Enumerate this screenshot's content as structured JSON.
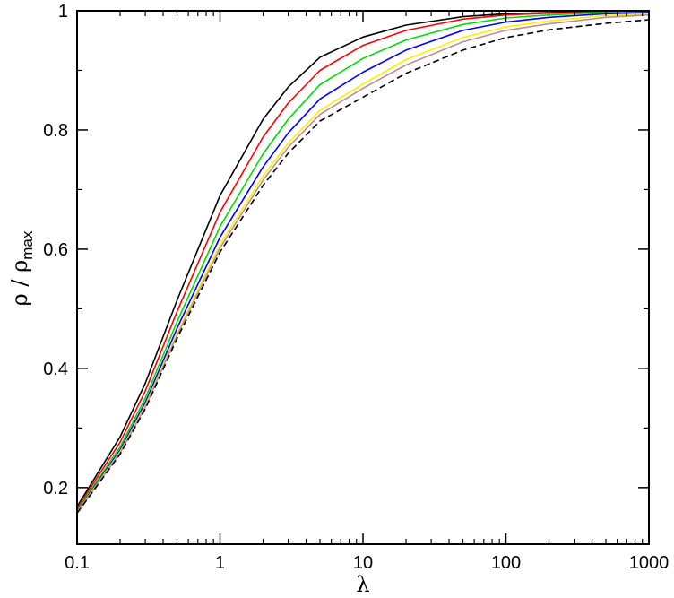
{
  "chart_data": {
    "type": "line",
    "title": "",
    "xlabel": "λ",
    "ylabel": "ρ / ρ",
    "ylabel_subscript": "max",
    "x_scale": "log",
    "xlim": [
      0.1,
      1000
    ],
    "ylim": [
      0.105,
      1.0
    ],
    "x_ticks": [
      0.1,
      1,
      10,
      100,
      1000
    ],
    "x_tick_labels": [
      "0.1",
      "1",
      "10",
      "100",
      "1000"
    ],
    "y_ticks": [
      0.2,
      0.4,
      0.6,
      0.8,
      1.0
    ],
    "y_tick_labels": [
      "0.2",
      "0.4",
      "0.6",
      "0.8",
      "1"
    ],
    "grid": false,
    "legend": "none",
    "x": [
      0.1,
      0.2,
      0.3,
      0.5,
      1,
      2,
      3,
      5,
      10,
      20,
      50,
      100,
      200,
      500,
      1000
    ],
    "series": [
      {
        "color": "#000000",
        "dash": "solid",
        "values": [
          0.168,
          0.285,
          0.375,
          0.514,
          0.69,
          0.818,
          0.872,
          0.922,
          0.956,
          0.976,
          0.99,
          0.995,
          0.997,
          0.999,
          1.0
        ]
      },
      {
        "color": "#ff0000",
        "dash": "solid",
        "values": [
          0.165,
          0.276,
          0.362,
          0.495,
          0.662,
          0.788,
          0.845,
          0.9,
          0.942,
          0.967,
          0.986,
          0.993,
          0.996,
          0.998,
          0.999
        ]
      },
      {
        "color": "#00dd00",
        "dash": "solid",
        "values": [
          0.162,
          0.268,
          0.35,
          0.478,
          0.638,
          0.76,
          0.818,
          0.876,
          0.92,
          0.951,
          0.977,
          0.988,
          0.993,
          0.997,
          0.998
        ]
      },
      {
        "color": "#0000ff",
        "dash": "solid",
        "values": [
          0.16,
          0.263,
          0.343,
          0.467,
          0.62,
          0.738,
          0.795,
          0.852,
          0.897,
          0.934,
          0.967,
          0.981,
          0.989,
          0.995,
          0.997
        ]
      },
      {
        "color": "#ffee00",
        "dash": "solid",
        "values": [
          0.159,
          0.26,
          0.338,
          0.459,
          0.608,
          0.723,
          0.778,
          0.833,
          0.877,
          0.918,
          0.955,
          0.973,
          0.983,
          0.992,
          0.995
        ]
      },
      {
        "color": "#bc8f8f",
        "dash": "solid",
        "values": [
          0.158,
          0.258,
          0.335,
          0.455,
          0.602,
          0.716,
          0.771,
          0.826,
          0.87,
          0.909,
          0.948,
          0.967,
          0.978,
          0.989,
          0.993
        ]
      },
      {
        "color": "#000000",
        "dash": "dashed",
        "values": [
          0.157,
          0.256,
          0.332,
          0.45,
          0.595,
          0.707,
          0.761,
          0.815,
          0.855,
          0.895,
          0.934,
          0.955,
          0.968,
          0.979,
          0.985
        ]
      }
    ]
  }
}
